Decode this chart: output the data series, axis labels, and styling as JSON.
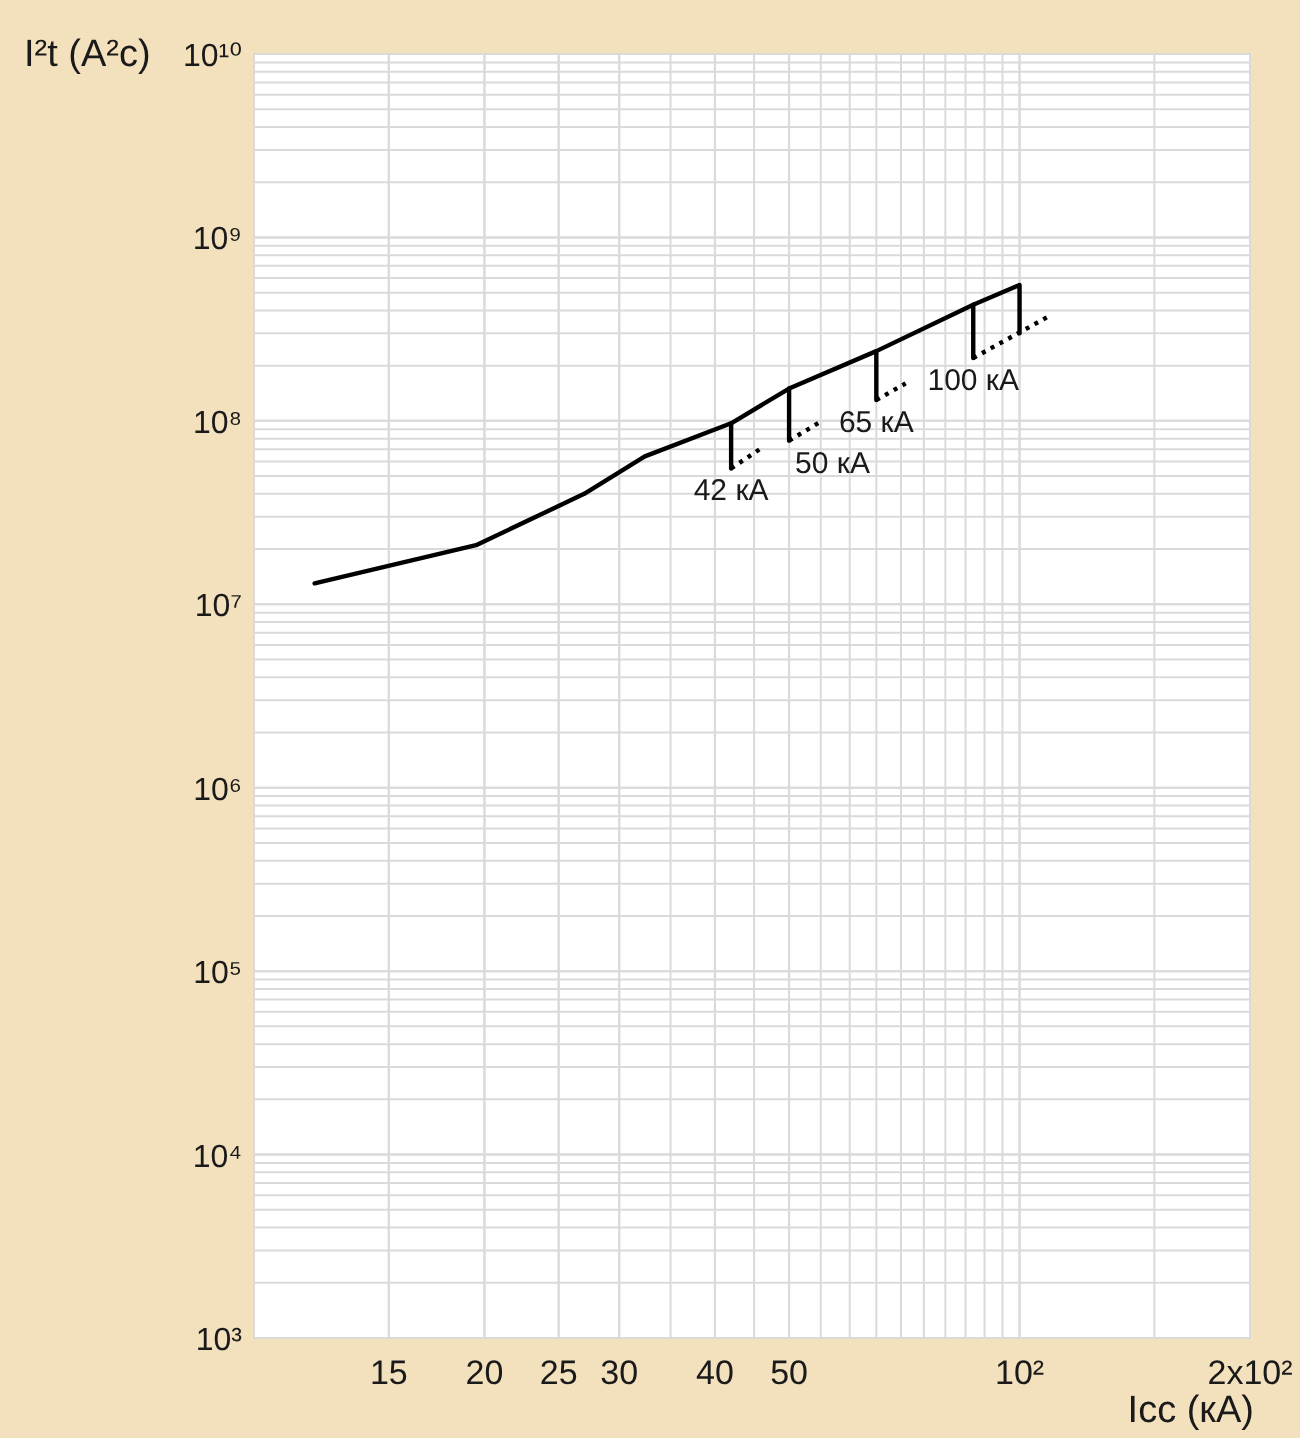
{
  "chart_data": {
    "type": "line",
    "xlabel": "Icc (кА)",
    "ylabel": "I²t (А²с)",
    "log": "xy",
    "grid": true,
    "line_style": "solid",
    "xlim": [
      10,
      200
    ],
    "xticks": [
      15,
      20,
      25,
      30,
      40,
      50,
      {
        "value": 100,
        "label": "10²"
      },
      {
        "value": 200,
        "label": "2x10²"
      }
    ],
    "ylim": [
      1000,
      10000000000
    ],
    "yticks": [
      {
        "value": 1000,
        "label": "10³"
      },
      {
        "value": 10000,
        "label": "10⁴"
      },
      {
        "value": 100000,
        "label": "10⁵"
      },
      {
        "value": 1000000,
        "label": "10⁶"
      },
      {
        "value": 10000000,
        "label": "10⁷"
      },
      {
        "value": 100000000,
        "label": "10⁸"
      },
      {
        "value": 1000000000,
        "label": "10⁹"
      },
      {
        "value": 10000000000,
        "label": "10¹⁰"
      }
    ],
    "series": [
      {
        "color": "#000000",
        "x": [
          12,
          19.5,
          27,
          32.4,
          42,
          50,
          65,
          87,
          100,
          100
        ],
        "values": [
          13000000,
          21000000,
          40000000,
          64000000,
          97000000,
          150000000,
          240000000,
          430000000,
          550000000,
          300000000
        ]
      },
      {
        "color": "#000000",
        "x": [
          42,
          42
        ],
        "values": [
          97000000,
          55000000
        ]
      },
      {
        "color": "#000000",
        "x": [
          50,
          50
        ],
        "values": [
          150000000,
          78000000
        ]
      },
      {
        "color": "#000000",
        "x": [
          65,
          65
        ],
        "values": [
          240000000,
          130000000
        ]
      },
      {
        "color": "#000000",
        "x": [
          87,
          87
        ],
        "values": [
          430000000,
          220000000
        ]
      },
      {
        "color": "#000000",
        "line_style": "dotted",
        "x": [
          42,
          46
        ],
        "values": [
          55000000,
          71000000
        ]
      },
      {
        "color": "#000000",
        "line_style": "dotted",
        "x": [
          50,
          55
        ],
        "values": [
          78000000,
          99000000
        ]
      },
      {
        "color": "#000000",
        "line_style": "dotted",
        "x": [
          65,
          71
        ],
        "values": [
          130000000,
          160000000
        ]
      },
      {
        "color": "#000000",
        "line_style": "dotted",
        "x": [
          87,
          109
        ],
        "values": [
          220000000,
          370000000
        ]
      }
    ],
    "annotations": [
      {
        "text": "42 кА",
        "x": 42,
        "y": 55000000
      },
      {
        "text": "50 кА",
        "x": 50,
        "y": 78000000
      },
      {
        "text": "65 кА",
        "x": 65,
        "y": 130000000
      },
      {
        "text": "100 кА",
        "x": 87,
        "y": 220000000
      }
    ]
  }
}
